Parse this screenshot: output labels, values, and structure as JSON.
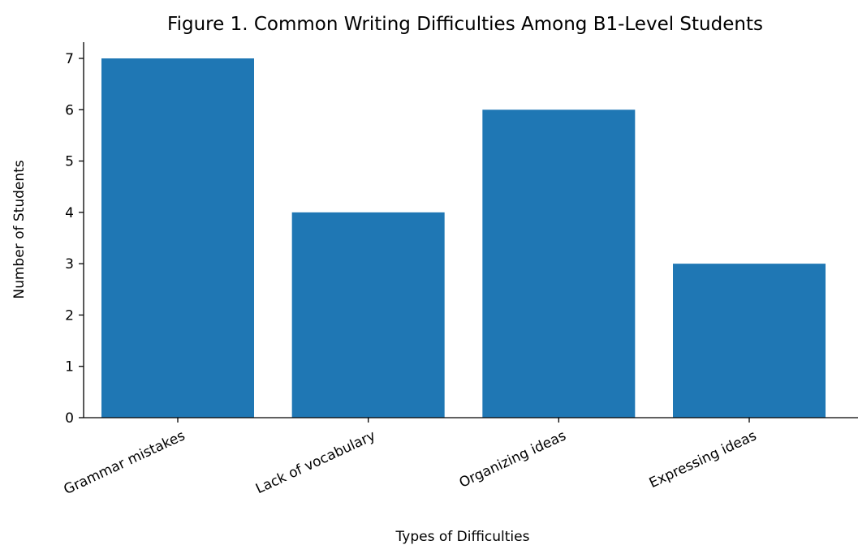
{
  "chart_data": {
    "type": "bar",
    "title": "Figure 1. Common Writing Difficulties Among B1-Level Students",
    "xlabel": "Types of Difficulties",
    "ylabel": "Number of Students",
    "categories": [
      "Grammar mistakes",
      "Lack of vocabulary",
      "Organizing ideas",
      "Expressing ideas"
    ],
    "values": [
      7,
      4,
      6,
      3
    ],
    "ylim": [
      0,
      7
    ],
    "yticks": [
      0,
      1,
      2,
      3,
      4,
      5,
      6,
      7
    ],
    "bar_color": "#1f77b4",
    "grid": false,
    "legend": "none",
    "xtick_rotation_deg": 25
  }
}
